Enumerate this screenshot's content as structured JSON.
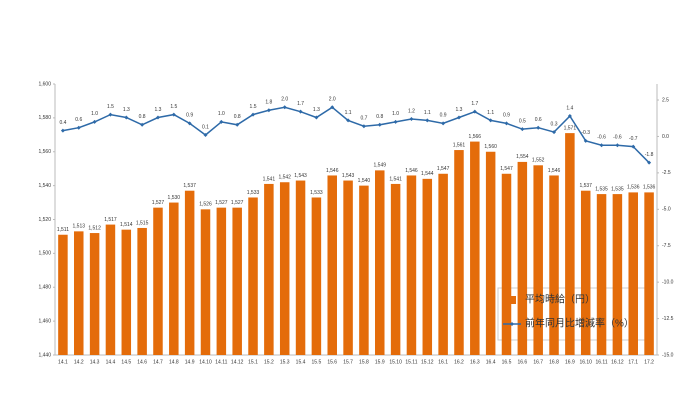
{
  "chart_data": {
    "type": "bar-line",
    "categories": [
      "14.1",
      "14.2",
      "14.3",
      "14.4",
      "14.5",
      "14.6",
      "14.7",
      "14.8",
      "14.9",
      "14.10",
      "14.11",
      "14.12",
      "15.1",
      "15.2",
      "15.3",
      "15.4",
      "15.5",
      "15.6",
      "15.7",
      "15.8",
      "15.9",
      "15.10",
      "15.11",
      "15.12",
      "16.1",
      "16.2",
      "16.3",
      "16.4",
      "16.5",
      "16.6",
      "16.7",
      "16.8",
      "16.9",
      "16.10",
      "16.11",
      "16.12",
      "17.1",
      "17.2"
    ],
    "series": [
      {
        "name": "平均時給（円）",
        "color": "#e46c0a",
        "kind": "bar",
        "values": [
          1511,
          1513,
          1512,
          1517,
          1514,
          1515,
          1527,
          1530,
          1537,
          1526,
          1527,
          1527,
          1533,
          1541,
          1542,
          1543,
          1533,
          1546,
          1543,
          1540,
          1549,
          1541,
          1546,
          1544,
          1547,
          1561,
          1566,
          1560,
          1547,
          1554,
          1552,
          1546,
          1571,
          1537,
          1535,
          1535,
          1536,
          1536
        ],
        "value_labels": [
          "1,511",
          "1,513",
          "1,512",
          "1,517",
          "1,514",
          "1,515",
          "1,527",
          "1,530",
          "1,537",
          "1,526",
          "1,527",
          "1,527",
          "1,533",
          "1,541",
          "1,542",
          "1,543",
          "1,533",
          "1,546",
          "1,543",
          "1,540",
          "1,549",
          "1,541",
          "1,546",
          "1,544",
          "1,547",
          "1,561",
          "1,566",
          "1,560",
          "1,547",
          "1,554",
          "1,552",
          "1,546",
          "1,571",
          "1,537",
          "1,535",
          "1,535",
          "1,536",
          "1,536"
        ]
      },
      {
        "name": "前年同月比増減率（%）",
        "color": "#2e6aa8",
        "kind": "line",
        "axis": "y2",
        "values": [
          0.4,
          0.6,
          1.0,
          1.5,
          1.3,
          0.8,
          1.3,
          1.5,
          0.9,
          0.1,
          1.0,
          0.8,
          1.5,
          1.8,
          2.0,
          1.7,
          1.3,
          2.0,
          1.1,
          0.7,
          0.8,
          1.0,
          1.2,
          1.1,
          0.9,
          1.3,
          1.7,
          1.1,
          0.9,
          0.5,
          0.6,
          0.3,
          1.4,
          -0.3,
          -0.6,
          -0.6,
          -0.7,
          -1.8
        ],
        "value_labels": [
          "0.4",
          "0.6",
          "1.0",
          "1.5",
          "1.3",
          "0.8",
          "1.3",
          "1.5",
          "0.9",
          "0.1",
          "1.0",
          "0.8",
          "1.5",
          "1.8",
          "2.0",
          "1.7",
          "1.3",
          "2.0",
          "1.1",
          "0.7",
          "0.8",
          "1.0",
          "1.2",
          "1.1",
          "0.9",
          "1.3",
          "1.7",
          "1.1",
          "0.9",
          "0.5",
          "0.6",
          "0.3",
          "1.4",
          "-0.3",
          "-0.6",
          "-0.6",
          "-0.7",
          "-1.8"
        ]
      }
    ],
    "ylim": [
      1440,
      1600
    ],
    "yticks": [
      {
        "value": 1440,
        "label": "1,440"
      },
      {
        "value": 1460,
        "label": "1,460"
      },
      {
        "value": 1480,
        "label": "1,480"
      },
      {
        "value": 1500,
        "label": "1,500"
      },
      {
        "value": 1520,
        "label": "1,520"
      },
      {
        "value": 1540,
        "label": "1,540"
      },
      {
        "value": 1560,
        "label": "1,560"
      },
      {
        "value": 1580,
        "label": "1,580"
      },
      {
        "value": 1600,
        "label": "1,600"
      }
    ],
    "y2lim": [
      -15,
      3.6
    ],
    "y2ticks": [
      2.5,
      {
        "value": 0,
        "label": "0.0"
      },
      -2.5,
      {
        "value": -5,
        "label": "-5.0"
      },
      -7.5,
      {
        "value": -10,
        "label": "-10.0"
      },
      -12.5,
      {
        "value": -15,
        "label": "-15.0"
      }
    ],
    "legend": "lower-right"
  }
}
